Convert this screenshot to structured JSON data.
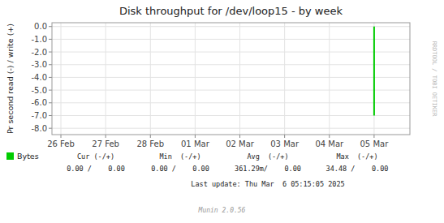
{
  "chart_data": {
    "type": "line",
    "title": "Disk throughput for /dev/loop15 - by week",
    "y_label": "Pr second read (-) / write (+)",
    "x": [
      7,
      7
    ],
    "series": [
      {
        "name": "Bytes",
        "color": "#00cc00",
        "values": [
          0,
          -7
        ]
      }
    ],
    "xlim": [
      -0.2,
      7.8
    ],
    "xticks": [
      {
        "value": 0,
        "label": "26 Feb"
      },
      {
        "value": 1,
        "label": "27 Feb"
      },
      {
        "value": 2,
        "label": "28 Feb"
      },
      {
        "value": 3,
        "label": "01 Mar"
      },
      {
        "value": 4,
        "label": "02 Mar"
      },
      {
        "value": 5,
        "label": "03 Mar"
      },
      {
        "value": 6,
        "label": "04 Mar"
      },
      {
        "value": 7,
        "label": "05 Mar"
      }
    ],
    "ylim": [
      -8.5,
      0.3
    ],
    "yticks": [
      {
        "value": 0,
        "label": "0.0"
      },
      {
        "value": -1,
        "label": "-1.0"
      },
      {
        "value": -2,
        "label": "-2.0"
      },
      {
        "value": -3,
        "label": "-3.0"
      },
      {
        "value": -4,
        "label": "-4.0"
      },
      {
        "value": -5,
        "label": "-5.0"
      },
      {
        "value": -6,
        "label": "-6.0"
      },
      {
        "value": -7,
        "label": "-7.0"
      },
      {
        "value": -8,
        "label": "-8.0"
      }
    ],
    "grid": true,
    "legend": "lower left",
    "annotations": [
      "Cur (-/+)",
      "Min  (-/+)",
      "Avg  (-/+)",
      "Max  (-/+)",
      "0.00 /    0.00",
      "0.00 /    0.00",
      "361.29m/    0.00",
      "34.48 /    0.00",
      "Last update: Thu Mar  6 05:15:05 2025",
      "Munin 2.0.56",
      "RRDTOOL / TOBI OETIKER"
    ]
  }
}
